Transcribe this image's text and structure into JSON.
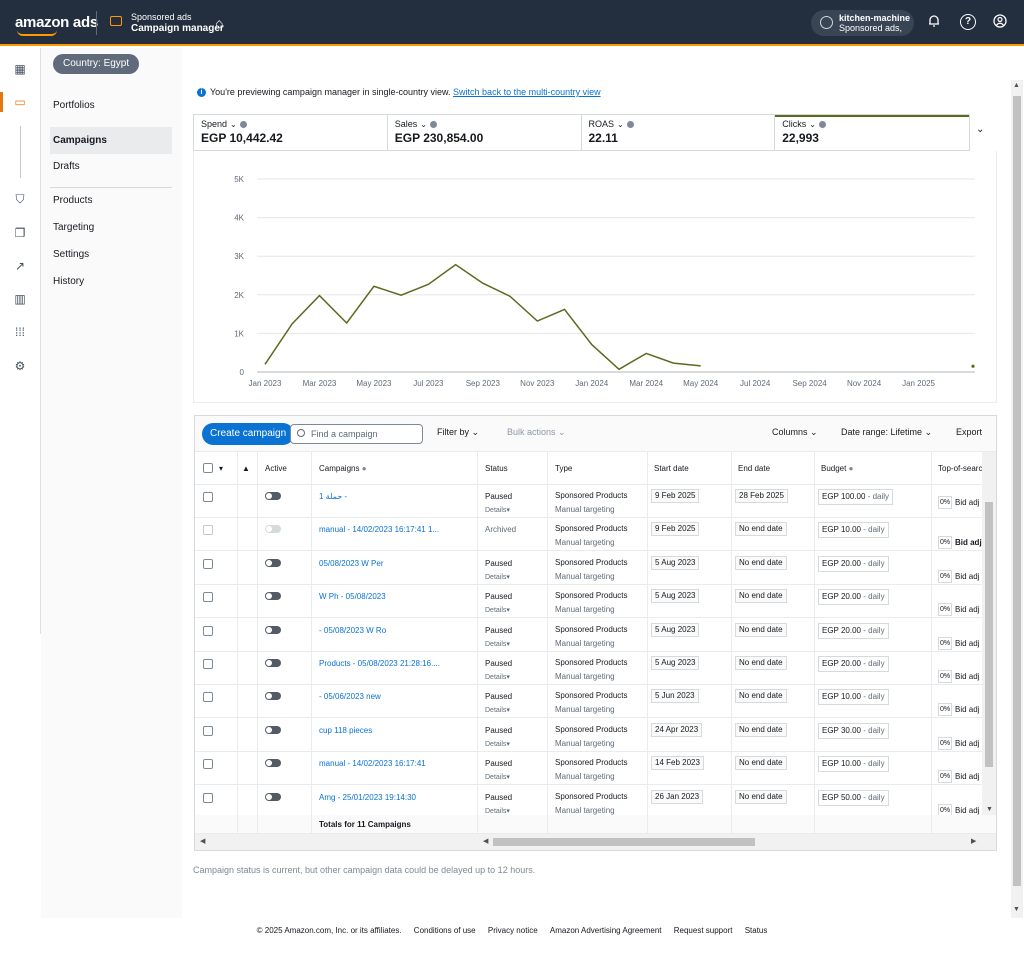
{
  "header": {
    "logo": "amazon ads",
    "product_line1": "Sponsored ads",
    "product_line2": "Campaign manager",
    "account_name": "kitchen-machine",
    "account_sub": "Sponsored ads,"
  },
  "sidenav": {
    "country": "Country: Egypt",
    "items": [
      "Portfolios",
      "Campaigns",
      "Drafts",
      "Products",
      "Targeting",
      "Settings",
      "History"
    ],
    "active": "Campaigns"
  },
  "info": {
    "text": "You're previewing campaign manager in single-country view.",
    "link": "Switch back to the multi-country view"
  },
  "metrics": [
    {
      "label": "Spend",
      "value": "EGP 10,442.42"
    },
    {
      "label": "Sales",
      "value": "EGP 230,854.00"
    },
    {
      "label": "ROAS",
      "value": "22.11"
    },
    {
      "label": "Clicks",
      "value": "22,993"
    }
  ],
  "chart_data": {
    "type": "line",
    "series": [
      {
        "values": [
          200,
          1250,
          1980,
          1270,
          2220,
          1990,
          2270,
          2780,
          2300,
          1960,
          1320,
          1620,
          710,
          70,
          480,
          230,
          160,
          null,
          null,
          null,
          null,
          null,
          null,
          null,
          null,
          null,
          150
        ]
      }
    ],
    "x": [
      "Jan 2023",
      "Feb 2023",
      "Mar 2023",
      "Apr 2023",
      "May 2023",
      "Jun 2023",
      "Jul 2023",
      "Aug 2023",
      "Sep 2023",
      "Oct 2023",
      "Nov 2023",
      "Dec 2023",
      "Jan 2024",
      "Feb 2024",
      "Mar 2024",
      "Apr 2024",
      "May 2024",
      "Jun 2024",
      "Jul 2024",
      "Aug 2024",
      "Sep 2024",
      "Oct 2024",
      "Nov 2024",
      "Dec 2024",
      "Jan 2025",
      "Feb 2025",
      "Mar 2025"
    ],
    "x_tick_labels": [
      "Jan 2023",
      "Mar 2023",
      "May 2023",
      "Jul 2023",
      "Sep 2023",
      "Nov 2023",
      "Jan 2024",
      "Mar 2024",
      "May 2024",
      "Jul 2024",
      "Sep 2024",
      "Nov 2024",
      "Jan 2025"
    ],
    "y_ticks": [
      0,
      1000,
      2000,
      3000,
      4000,
      5000
    ],
    "y_tick_labels": [
      "0",
      "1K",
      "2K",
      "3K",
      "4K",
      "5K"
    ],
    "ylim": [
      0,
      5000
    ],
    "grid": true,
    "color": "#5b6a1e"
  },
  "toolbar": {
    "create": "Create campaign",
    "search_placeholder": "Find a campaign",
    "filter": "Filter by",
    "bulk": "Bulk actions",
    "columns": "Columns",
    "date_range": "Date range: Lifetime",
    "export": "Export"
  },
  "table": {
    "headers": [
      "Active",
      "Campaigns",
      "Status",
      "Type",
      "Start date",
      "End date",
      "Budget",
      "Top-of-search IS"
    ],
    "rows": [
      {
        "name": "حملة 1 -",
        "status": "Paused",
        "details": true,
        "type": "Sponsored Products",
        "targeting": "Manual targeting",
        "start": "9 Feb 2025",
        "end": "28 Feb 2025",
        "budget": "EGP 100.00",
        "daily": "- daily",
        "pct": "0%",
        "bid": "Bid adj",
        "enabled": true,
        "bold_bid": false
      },
      {
        "name": "manual - 14/02/2023 16:17:41 1...",
        "status": "Archived",
        "details": false,
        "type": "Sponsored Products",
        "targeting": "Manual targeting",
        "start": "9 Feb 2025",
        "end": "No end date",
        "budget": "EGP 10.00",
        "daily": "- daily",
        "pct": "0%",
        "bid": "Bid adj",
        "enabled": false,
        "bold_bid": true
      },
      {
        "name": "05/08/2023  W Per",
        "status": "Paused",
        "details": true,
        "type": "Sponsored Products",
        "targeting": "Manual targeting",
        "start": "5 Aug 2023",
        "end": "No end date",
        "budget": "EGP 20.00",
        "daily": "- daily",
        "pct": "0%",
        "bid": "Bid adj",
        "enabled": true,
        "bold_bid": true
      },
      {
        "name": "W Ph - 05/08/2023",
        "status": "Paused",
        "details": true,
        "type": "Sponsored Products",
        "targeting": "Manual targeting",
        "start": "5 Aug 2023",
        "end": "No end date",
        "budget": "EGP 20.00",
        "daily": "- daily",
        "pct": "0%",
        "bid": "Bid adj",
        "enabled": true,
        "bold_bid": true
      },
      {
        "name": "- 05/08/2023  W Ro",
        "status": "Paused",
        "details": true,
        "type": "Sponsored Products",
        "targeting": "Manual targeting",
        "start": "5 Aug 2023",
        "end": "No end date",
        "budget": "EGP 20.00",
        "daily": "- daily",
        "pct": "0%",
        "bid": "Bid adj",
        "enabled": true,
        "bold_bid": true
      },
      {
        "name": "Products - 05/08/2023 21:28:16....",
        "status": "Paused",
        "details": true,
        "type": "Sponsored Products",
        "targeting": "Manual targeting",
        "start": "5 Aug 2023",
        "end": "No end date",
        "budget": "EGP 20.00",
        "daily": "- daily",
        "pct": "0%",
        "bid": "Bid adj",
        "enabled": true,
        "bold_bid": true
      },
      {
        "name": "- 05/06/2023  new",
        "status": "Paused",
        "details": true,
        "type": "Sponsored Products",
        "targeting": "Manual targeting",
        "start": "5 Jun 2023",
        "end": "No end date",
        "budget": "EGP 10.00",
        "daily": "- daily",
        "pct": "0%",
        "bid": "Bid adj",
        "enabled": true,
        "bold_bid": true
      },
      {
        "name": "cup 118 pieces",
        "status": "Paused",
        "details": true,
        "type": "Sponsored Products",
        "targeting": "Manual targeting",
        "start": "24 Apr 2023",
        "end": "No end date",
        "budget": "EGP 30.00",
        "daily": "- daily",
        "pct": "0%",
        "bid": "Bid adj",
        "enabled": true,
        "bold_bid": true
      },
      {
        "name": "manual - 14/02/2023 16:17:41",
        "status": "Paused",
        "details": true,
        "type": "Sponsored Products",
        "targeting": "Manual targeting",
        "start": "14 Feb 2023",
        "end": "No end date",
        "budget": "EGP 10.00",
        "daily": "- daily",
        "pct": "0%",
        "bid": "Bid adj",
        "enabled": true,
        "bold_bid": true
      },
      {
        "name": "Amg - 25/01/2023 19:14:30",
        "status": "Paused",
        "details": true,
        "type": "Sponsored Products",
        "targeting": "Manual targeting",
        "start": "26 Jan 2023",
        "end": "No end date",
        "budget": "EGP 50.00",
        "daily": "- daily",
        "pct": "0%",
        "bid": "Bid adj",
        "enabled": true,
        "bold_bid": true
      }
    ],
    "details_label": "Details",
    "totals": "Totals for 11 Campaigns"
  },
  "note": "Campaign status is current, but other campaign data could be delayed up to 12 hours.",
  "footer": [
    "© 2025 Amazon.com, Inc. or its affiliates.",
    "Conditions of use",
    "Privacy notice",
    "Amazon Advertising Agreement",
    "Request support",
    "Status"
  ]
}
